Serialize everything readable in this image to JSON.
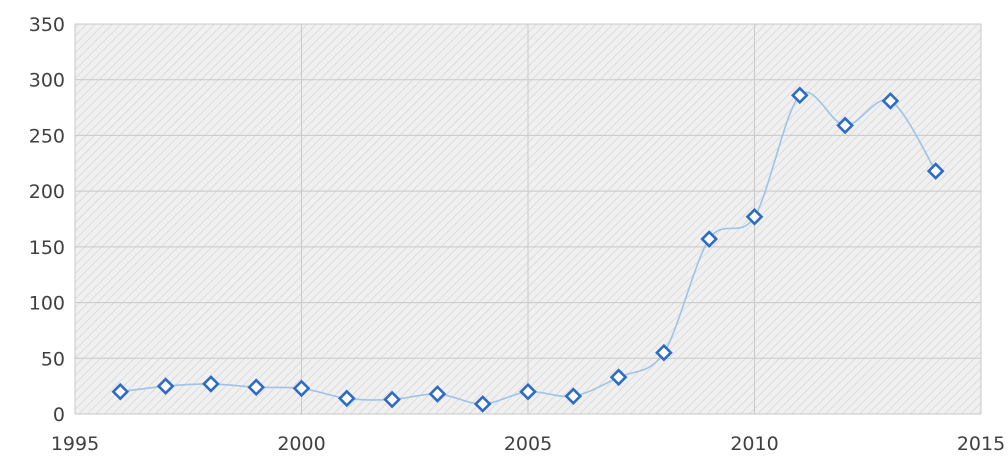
{
  "chart_data": {
    "type": "scatter",
    "title": "",
    "xlabel": "",
    "ylabel": "",
    "xlim": [
      1995,
      2015
    ],
    "ylim": [
      0,
      350
    ],
    "x_ticks": [
      1995,
      2000,
      2005,
      2010,
      2015
    ],
    "y_ticks": [
      0,
      50,
      100,
      150,
      200,
      250,
      300,
      350
    ],
    "grid": true,
    "line": "smooth",
    "colors": {
      "marker_stroke": "#2E6BC6",
      "line": "#9DC3E6",
      "plot_bg": "#f0f0f0",
      "hatch": "#dcdcdc",
      "grid": "#c8c8c8"
    },
    "series": [
      {
        "x": [
          1996,
          1997,
          1998,
          1999,
          2000,
          2001,
          2002,
          2003,
          2004,
          2005,
          2006,
          2007,
          2008,
          2009,
          2010,
          2011,
          2012,
          2013,
          2014
        ],
        "y": [
          20,
          25,
          27,
          24,
          23,
          14,
          13,
          18,
          9,
          20,
          16,
          33,
          55,
          157,
          177,
          286,
          259,
          281,
          218
        ]
      }
    ]
  }
}
